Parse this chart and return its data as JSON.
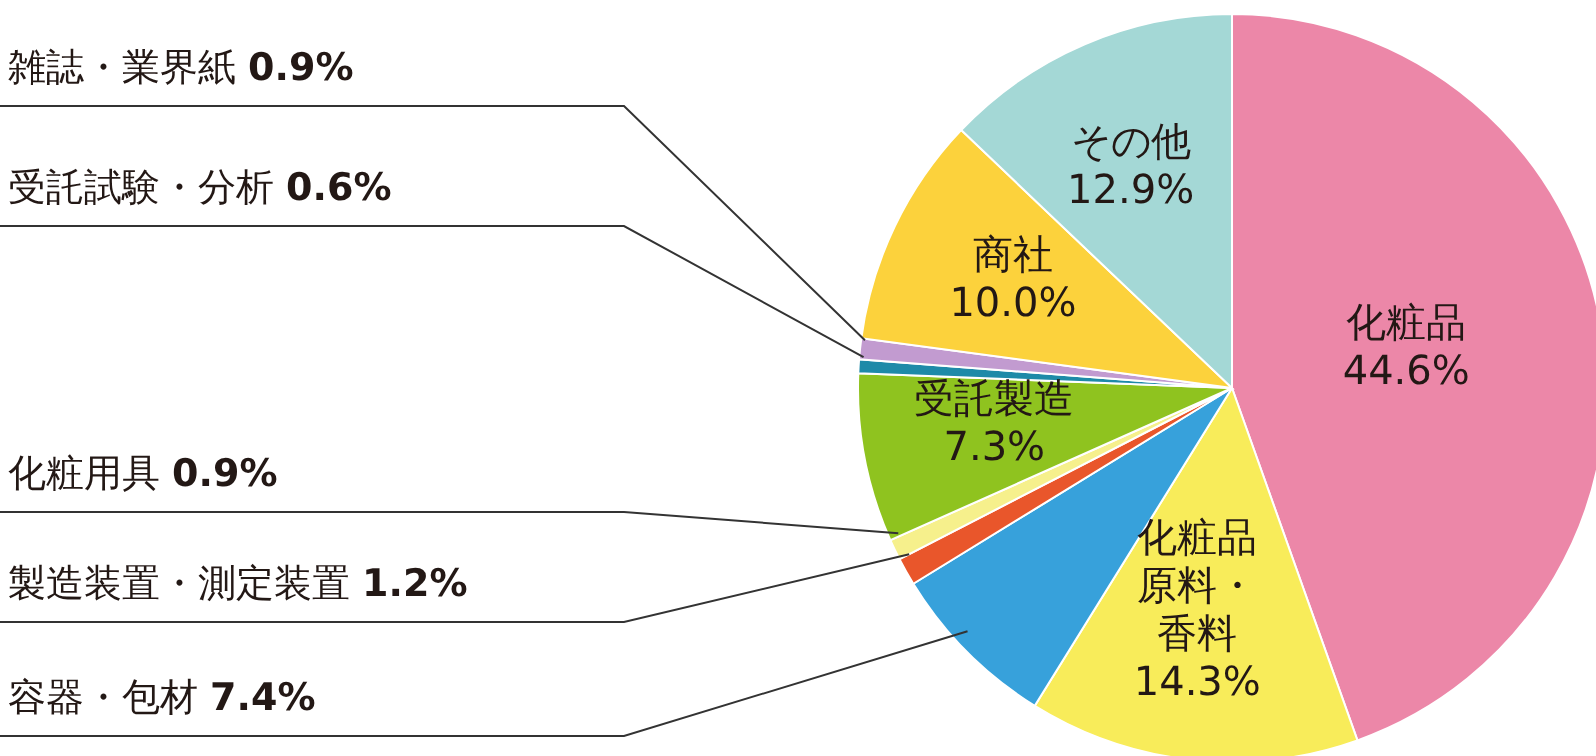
{
  "chart_data": {
    "type": "pie",
    "categories": [
      "化粧品",
      "化粧品原料・香料",
      "容器・包材",
      "製造装置・測定装置",
      "化粧用具",
      "受託製造",
      "受託試験・分析",
      "雑誌・業界紙",
      "商社",
      "その他"
    ],
    "values": [
      44.6,
      14.3,
      7.4,
      1.2,
      0.9,
      7.3,
      0.6,
      0.9,
      10.0,
      12.9
    ],
    "colors": [
      "#ec87a8",
      "#f8ec5a",
      "#37a1db",
      "#e9562b",
      "#f6f08c",
      "#8fc31f",
      "#1e8aa8",
      "#c29bd0",
      "#fcd23c",
      "#a4d8d6"
    ],
    "value_labels": [
      "44.6%",
      "14.3%",
      "7.4%",
      "1.2%",
      "0.9%",
      "7.3%",
      "0.6%",
      "0.9%",
      "10.0%",
      "12.9%"
    ]
  }
}
